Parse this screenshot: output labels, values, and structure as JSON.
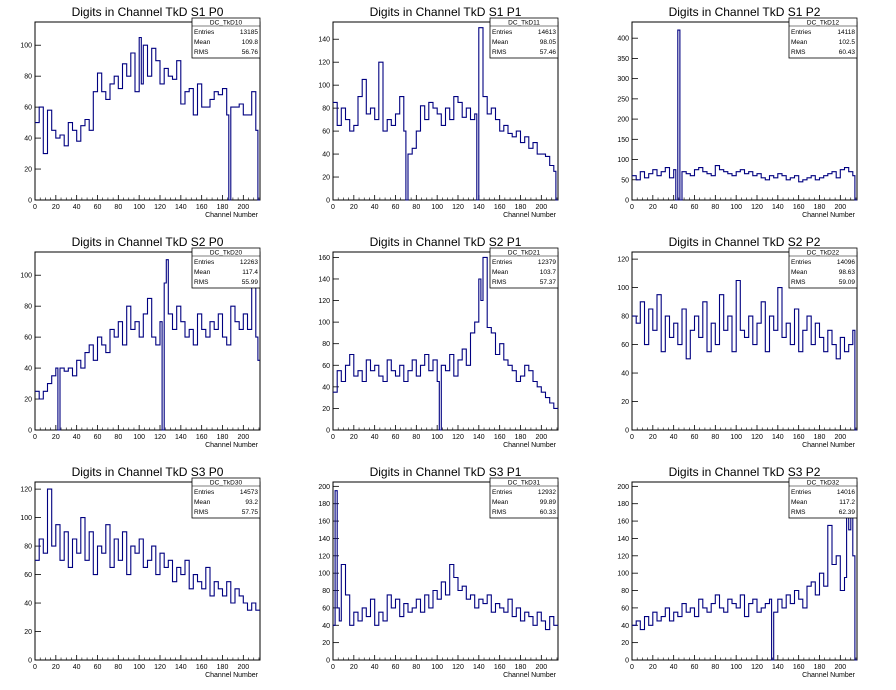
{
  "page": {
    "colors": {
      "line": "#000080",
      "axis": "#000000",
      "background": "#ffffff"
    }
  },
  "chart_data": [
    {
      "type": "line",
      "title": "Digits in Channel TkD S1 P0",
      "xlabel": "Channel Number",
      "ylabel": "",
      "xlim": [
        0,
        216
      ],
      "ylim": [
        0,
        115
      ],
      "xticks": [
        "0",
        "20",
        "40",
        "60",
        "80",
        "100",
        "120",
        "140",
        "160",
        "180",
        "200"
      ],
      "yticks": [
        "20",
        "40",
        "60",
        "80",
        "100"
      ],
      "stats": {
        "name": "DC_TkD10",
        "entries": "13185",
        "mean": "109.8",
        "rms": "56.76"
      },
      "x": [
        0,
        4,
        8,
        12,
        16,
        20,
        24,
        28,
        32,
        36,
        40,
        44,
        48,
        52,
        56,
        60,
        64,
        68,
        72,
        76,
        80,
        84,
        88,
        92,
        96,
        100,
        102,
        104,
        108,
        112,
        116,
        120,
        124,
        128,
        132,
        136,
        140,
        144,
        148,
        152,
        156,
        160,
        164,
        168,
        172,
        176,
        180,
        184,
        186,
        188,
        192,
        196,
        200,
        204,
        208,
        212,
        214,
        216
      ],
      "values": [
        50,
        60,
        30,
        58,
        45,
        40,
        42,
        35,
        50,
        45,
        38,
        48,
        52,
        45,
        70,
        82,
        70,
        65,
        75,
        80,
        72,
        88,
        80,
        95,
        70,
        105,
        75,
        100,
        80,
        98,
        90,
        75,
        85,
        80,
        78,
        90,
        62,
        70,
        72,
        55,
        75,
        60,
        60,
        65,
        70,
        68,
        72,
        55,
        0,
        60,
        60,
        62,
        55,
        55,
        70,
        45,
        0,
        55
      ]
    },
    {
      "type": "line",
      "title": "Digits in Channel TkD S1 P1",
      "xlabel": "Channel Number",
      "ylabel": "",
      "xlim": [
        0,
        216
      ],
      "ylim": [
        0,
        155
      ],
      "xticks": [
        "0",
        "20",
        "40",
        "60",
        "80",
        "100",
        "120",
        "140",
        "160",
        "180",
        "200"
      ],
      "yticks": [
        "20",
        "40",
        "60",
        "80",
        "100",
        "120",
        "140"
      ],
      "stats": {
        "name": "DC_TkD11",
        "entries": "14613",
        "mean": "98.05",
        "rms": "57.46"
      },
      "x": [
        0,
        4,
        8,
        12,
        16,
        20,
        24,
        28,
        32,
        36,
        40,
        44,
        48,
        52,
        56,
        60,
        64,
        68,
        70,
        72,
        76,
        80,
        84,
        88,
        92,
        96,
        100,
        104,
        108,
        112,
        116,
        120,
        124,
        128,
        132,
        136,
        138,
        140,
        144,
        148,
        152,
        156,
        160,
        164,
        168,
        172,
        176,
        180,
        184,
        188,
        192,
        196,
        200,
        204,
        208,
        212,
        214,
        216
      ],
      "values": [
        85,
        65,
        80,
        70,
        60,
        65,
        90,
        105,
        75,
        80,
        70,
        120,
        60,
        70,
        65,
        75,
        90,
        60,
        0,
        40,
        45,
        60,
        82,
        70,
        85,
        80,
        75,
        65,
        80,
        70,
        90,
        85,
        72,
        80,
        70,
        75,
        0,
        150,
        90,
        75,
        80,
        70,
        60,
        65,
        58,
        55,
        60,
        50,
        55,
        45,
        50,
        40,
        40,
        38,
        30,
        25,
        0,
        20
      ]
    },
    {
      "type": "line",
      "title": "Digits in Channel TkD S1 P2",
      "xlabel": "Channel Number",
      "ylabel": "",
      "xlim": [
        0,
        216
      ],
      "ylim": [
        0,
        440
      ],
      "xticks": [
        "0",
        "20",
        "40",
        "60",
        "80",
        "100",
        "120",
        "140",
        "160",
        "180",
        "200"
      ],
      "yticks": [
        "50",
        "100",
        "150",
        "200",
        "250",
        "300",
        "350",
        "400"
      ],
      "stats": {
        "name": "DC_TkD12",
        "entries": "14118",
        "mean": "102.5",
        "rms": "60.43"
      },
      "x": [
        0,
        4,
        8,
        12,
        16,
        20,
        24,
        28,
        32,
        36,
        40,
        42,
        44,
        46,
        48,
        52,
        56,
        60,
        64,
        68,
        72,
        76,
        80,
        84,
        88,
        92,
        96,
        100,
        104,
        108,
        112,
        116,
        120,
        124,
        128,
        132,
        136,
        140,
        144,
        148,
        152,
        156,
        160,
        164,
        168,
        172,
        176,
        180,
        184,
        188,
        192,
        196,
        200,
        204,
        208,
        212,
        214,
        216
      ],
      "values": [
        60,
        50,
        70,
        55,
        65,
        75,
        60,
        70,
        80,
        55,
        75,
        0,
        420,
        0,
        70,
        65,
        60,
        75,
        80,
        70,
        65,
        60,
        85,
        75,
        70,
        65,
        60,
        70,
        75,
        65,
        70,
        60,
        65,
        55,
        50,
        60,
        55,
        65,
        60,
        50,
        55,
        60,
        45,
        50,
        55,
        60,
        50,
        55,
        60,
        65,
        70,
        55,
        75,
        80,
        70,
        60,
        0,
        45
      ]
    },
    {
      "type": "line",
      "title": "Digits in Channel TkD S2 P0",
      "xlabel": "Channel Number",
      "ylabel": "",
      "xlim": [
        0,
        216
      ],
      "ylim": [
        0,
        115
      ],
      "xticks": [
        "0",
        "20",
        "40",
        "60",
        "80",
        "100",
        "120",
        "140",
        "160",
        "180",
        "200"
      ],
      "yticks": [
        "20",
        "40",
        "60",
        "80",
        "100"
      ],
      "stats": {
        "name": "DC_TkD20",
        "entries": "12263",
        "mean": "117.4",
        "rms": "55.99"
      },
      "x": [
        0,
        4,
        8,
        12,
        16,
        20,
        22,
        24,
        28,
        32,
        36,
        40,
        44,
        48,
        52,
        56,
        60,
        64,
        68,
        72,
        76,
        80,
        84,
        88,
        92,
        96,
        100,
        104,
        108,
        112,
        116,
        120,
        122,
        124,
        126,
        128,
        132,
        136,
        140,
        144,
        148,
        152,
        156,
        160,
        164,
        168,
        172,
        176,
        180,
        184,
        188,
        192,
        196,
        200,
        204,
        208,
        212,
        214,
        216
      ],
      "values": [
        25,
        20,
        25,
        30,
        35,
        40,
        0,
        40,
        38,
        40,
        35,
        45,
        40,
        50,
        55,
        45,
        60,
        55,
        50,
        65,
        60,
        70,
        55,
        80,
        65,
        70,
        60,
        75,
        85,
        60,
        55,
        70,
        0,
        95,
        110,
        75,
        65,
        80,
        70,
        60,
        65,
        55,
        75,
        65,
        60,
        70,
        65,
        75,
        60,
        55,
        80,
        70,
        65,
        75,
        65,
        95,
        60,
        45,
        40
      ]
    },
    {
      "type": "line",
      "title": "Digits in Channel TkD S2 P1",
      "xlabel": "Channel Number",
      "ylabel": "",
      "xlim": [
        0,
        216
      ],
      "ylim": [
        0,
        165
      ],
      "xticks": [
        "0",
        "20",
        "40",
        "60",
        "80",
        "100",
        "120",
        "140",
        "160",
        "180",
        "200"
      ],
      "yticks": [
        "20",
        "40",
        "60",
        "80",
        "100",
        "120",
        "140",
        "160"
      ],
      "stats": {
        "name": "DC_TkD21",
        "entries": "12379",
        "mean": "103.7",
        "rms": "57.37"
      },
      "x": [
        0,
        4,
        8,
        12,
        16,
        20,
        24,
        28,
        32,
        36,
        40,
        44,
        48,
        52,
        56,
        60,
        64,
        68,
        72,
        76,
        80,
        84,
        88,
        92,
        96,
        100,
        102,
        104,
        108,
        112,
        116,
        120,
        124,
        128,
        132,
        136,
        140,
        142,
        144,
        148,
        152,
        156,
        160,
        164,
        168,
        172,
        176,
        180,
        184,
        188,
        192,
        196,
        200,
        204,
        208,
        212,
        216
      ],
      "values": [
        35,
        55,
        45,
        60,
        70,
        50,
        55,
        45,
        65,
        55,
        60,
        50,
        45,
        65,
        55,
        50,
        60,
        45,
        55,
        65,
        50,
        60,
        70,
        55,
        65,
        45,
        0,
        60,
        55,
        70,
        50,
        65,
        75,
        60,
        90,
        100,
        140,
        120,
        160,
        95,
        90,
        70,
        80,
        65,
        60,
        55,
        45,
        50,
        60,
        55,
        45,
        40,
        35,
        30,
        25,
        20,
        15
      ]
    },
    {
      "type": "line",
      "title": "Digits in Channel TkD S2 P2",
      "xlabel": "Channel Number",
      "ylabel": "",
      "xlim": [
        0,
        216
      ],
      "ylim": [
        0,
        125
      ],
      "xticks": [
        "0",
        "20",
        "40",
        "60",
        "80",
        "100",
        "120",
        "140",
        "160",
        "180",
        "200"
      ],
      "yticks": [
        "20",
        "40",
        "60",
        "80",
        "100",
        "120"
      ],
      "stats": {
        "name": "DC_TkD22",
        "entries": "14096",
        "mean": "98.63",
        "rms": "59.09"
      },
      "x": [
        0,
        4,
        8,
        12,
        16,
        20,
        24,
        28,
        32,
        36,
        40,
        44,
        48,
        52,
        56,
        60,
        64,
        68,
        72,
        76,
        80,
        84,
        88,
        92,
        96,
        100,
        104,
        108,
        112,
        116,
        120,
        124,
        128,
        132,
        136,
        140,
        144,
        148,
        152,
        156,
        160,
        164,
        168,
        172,
        176,
        180,
        184,
        188,
        192,
        196,
        200,
        204,
        208,
        212,
        214,
        216
      ],
      "values": [
        80,
        75,
        90,
        60,
        85,
        70,
        95,
        55,
        80,
        65,
        75,
        60,
        85,
        50,
        70,
        80,
        65,
        90,
        55,
        75,
        60,
        95,
        70,
        80,
        55,
        105,
        70,
        65,
        80,
        60,
        75,
        90,
        55,
        80,
        70,
        100,
        65,
        75,
        60,
        85,
        55,
        70,
        80,
        60,
        75,
        65,
        55,
        70,
        60,
        50,
        65,
        55,
        60,
        70,
        0,
        80
      ]
    },
    {
      "type": "line",
      "title": "Digits in Channel TkD S3 P0",
      "xlabel": "Channel Number",
      "ylabel": "",
      "xlim": [
        0,
        216
      ],
      "ylim": [
        0,
        125
      ],
      "xticks": [
        "0",
        "20",
        "40",
        "60",
        "80",
        "100",
        "120",
        "140",
        "160",
        "180",
        "200"
      ],
      "yticks": [
        "20",
        "40",
        "60",
        "80",
        "100",
        "120"
      ],
      "stats": {
        "name": "DC_TkD30",
        "entries": "14573",
        "mean": "93.2",
        "rms": "57.75"
      },
      "x": [
        0,
        4,
        8,
        12,
        16,
        20,
        24,
        28,
        32,
        36,
        40,
        44,
        48,
        52,
        56,
        60,
        64,
        68,
        72,
        76,
        80,
        84,
        88,
        92,
        96,
        100,
        104,
        108,
        112,
        116,
        120,
        124,
        128,
        132,
        136,
        140,
        144,
        148,
        152,
        156,
        160,
        164,
        168,
        172,
        176,
        180,
        184,
        188,
        192,
        196,
        200,
        204,
        208,
        212,
        216
      ],
      "values": [
        70,
        85,
        75,
        120,
        80,
        95,
        70,
        90,
        65,
        85,
        75,
        100,
        70,
        90,
        60,
        80,
        75,
        95,
        65,
        85,
        70,
        90,
        60,
        80,
        75,
        85,
        65,
        70,
        80,
        60,
        75,
        65,
        70,
        55,
        65,
        60,
        70,
        50,
        60,
        55,
        50,
        65,
        45,
        55,
        50,
        45,
        55,
        40,
        50,
        45,
        40,
        35,
        40,
        35,
        30
      ]
    },
    {
      "type": "line",
      "title": "Digits in Channel TkD S3 P1",
      "xlabel": "Channel Number",
      "ylabel": "",
      "xlim": [
        0,
        216
      ],
      "ylim": [
        0,
        205
      ],
      "xticks": [
        "0",
        "20",
        "40",
        "60",
        "80",
        "100",
        "120",
        "140",
        "160",
        "180",
        "200"
      ],
      "yticks": [
        "20",
        "40",
        "60",
        "80",
        "100",
        "120",
        "140",
        "160",
        "180",
        "200"
      ],
      "stats": {
        "name": "DC_TkD31",
        "entries": "12932",
        "mean": "99.89",
        "rms": "60.33"
      },
      "x": [
        0,
        2,
        4,
        6,
        8,
        12,
        16,
        20,
        24,
        28,
        32,
        36,
        40,
        44,
        48,
        52,
        56,
        60,
        64,
        68,
        72,
        76,
        80,
        84,
        88,
        92,
        96,
        100,
        104,
        108,
        112,
        116,
        120,
        124,
        128,
        132,
        136,
        140,
        144,
        148,
        152,
        156,
        160,
        164,
        168,
        172,
        176,
        180,
        184,
        188,
        192,
        196,
        200,
        204,
        208,
        212,
        216
      ],
      "values": [
        40,
        195,
        60,
        45,
        110,
        75,
        40,
        55,
        45,
        60,
        50,
        70,
        40,
        55,
        45,
        75,
        60,
        70,
        50,
        65,
        55,
        60,
        70,
        55,
        75,
        60,
        80,
        70,
        90,
        75,
        110,
        95,
        80,
        85,
        70,
        75,
        60,
        70,
        65,
        75,
        55,
        65,
        60,
        55,
        70,
        50,
        60,
        45,
        55,
        50,
        40,
        55,
        45,
        35,
        50,
        40,
        30
      ]
    },
    {
      "type": "line",
      "title": "Digits in Channel TkD S3 P2",
      "xlabel": "Channel Number",
      "ylabel": "",
      "xlim": [
        0,
        216
      ],
      "ylim": [
        0,
        205
      ],
      "xticks": [
        "0",
        "20",
        "40",
        "60",
        "80",
        "100",
        "120",
        "140",
        "160",
        "180",
        "200"
      ],
      "yticks": [
        "20",
        "40",
        "60",
        "80",
        "100",
        "120",
        "140",
        "160",
        "180",
        "200"
      ],
      "stats": {
        "name": "DC_TkD32",
        "entries": "14016",
        "mean": "117.2",
        "rms": "62.39"
      },
      "x": [
        0,
        4,
        8,
        12,
        16,
        20,
        24,
        28,
        32,
        36,
        40,
        44,
        48,
        52,
        56,
        60,
        64,
        68,
        72,
        76,
        80,
        84,
        88,
        92,
        96,
        100,
        104,
        108,
        112,
        116,
        120,
        124,
        128,
        132,
        134,
        136,
        140,
        144,
        148,
        152,
        156,
        160,
        164,
        168,
        172,
        176,
        180,
        184,
        188,
        192,
        196,
        200,
        204,
        206,
        208,
        210,
        212,
        214,
        216
      ],
      "values": [
        40,
        45,
        35,
        50,
        40,
        55,
        45,
        50,
        60,
        45,
        55,
        50,
        65,
        55,
        60,
        50,
        70,
        60,
        55,
        65,
        75,
        60,
        55,
        70,
        65,
        60,
        75,
        50,
        65,
        70,
        55,
        60,
        65,
        70,
        0,
        55,
        70,
        60,
        75,
        65,
        80,
        70,
        60,
        85,
        90,
        75,
        100,
        85,
        155,
        110,
        120,
        80,
        95,
        180,
        150,
        200,
        120,
        0,
        30
      ]
    }
  ]
}
